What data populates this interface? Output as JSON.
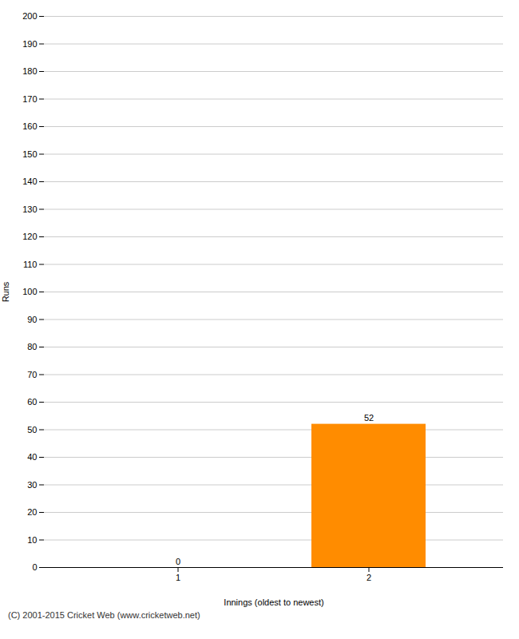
{
  "chart_data": {
    "type": "bar",
    "categories": [
      1,
      2
    ],
    "values": [
      0,
      52
    ],
    "color": "#FF8C00",
    "xlabel": "Innings (oldest to newest)",
    "ylabel": "Runs",
    "ylim": [
      0,
      200
    ],
    "yticks": [
      0,
      10,
      20,
      30,
      40,
      50,
      60,
      70,
      80,
      90,
      100,
      110,
      120,
      130,
      140,
      150,
      160,
      170,
      180,
      190,
      200
    ],
    "grid": true,
    "data_labels": true,
    "caption": "(C) 2001-2015 Cricket Web (www.cricketweb.net)"
  }
}
